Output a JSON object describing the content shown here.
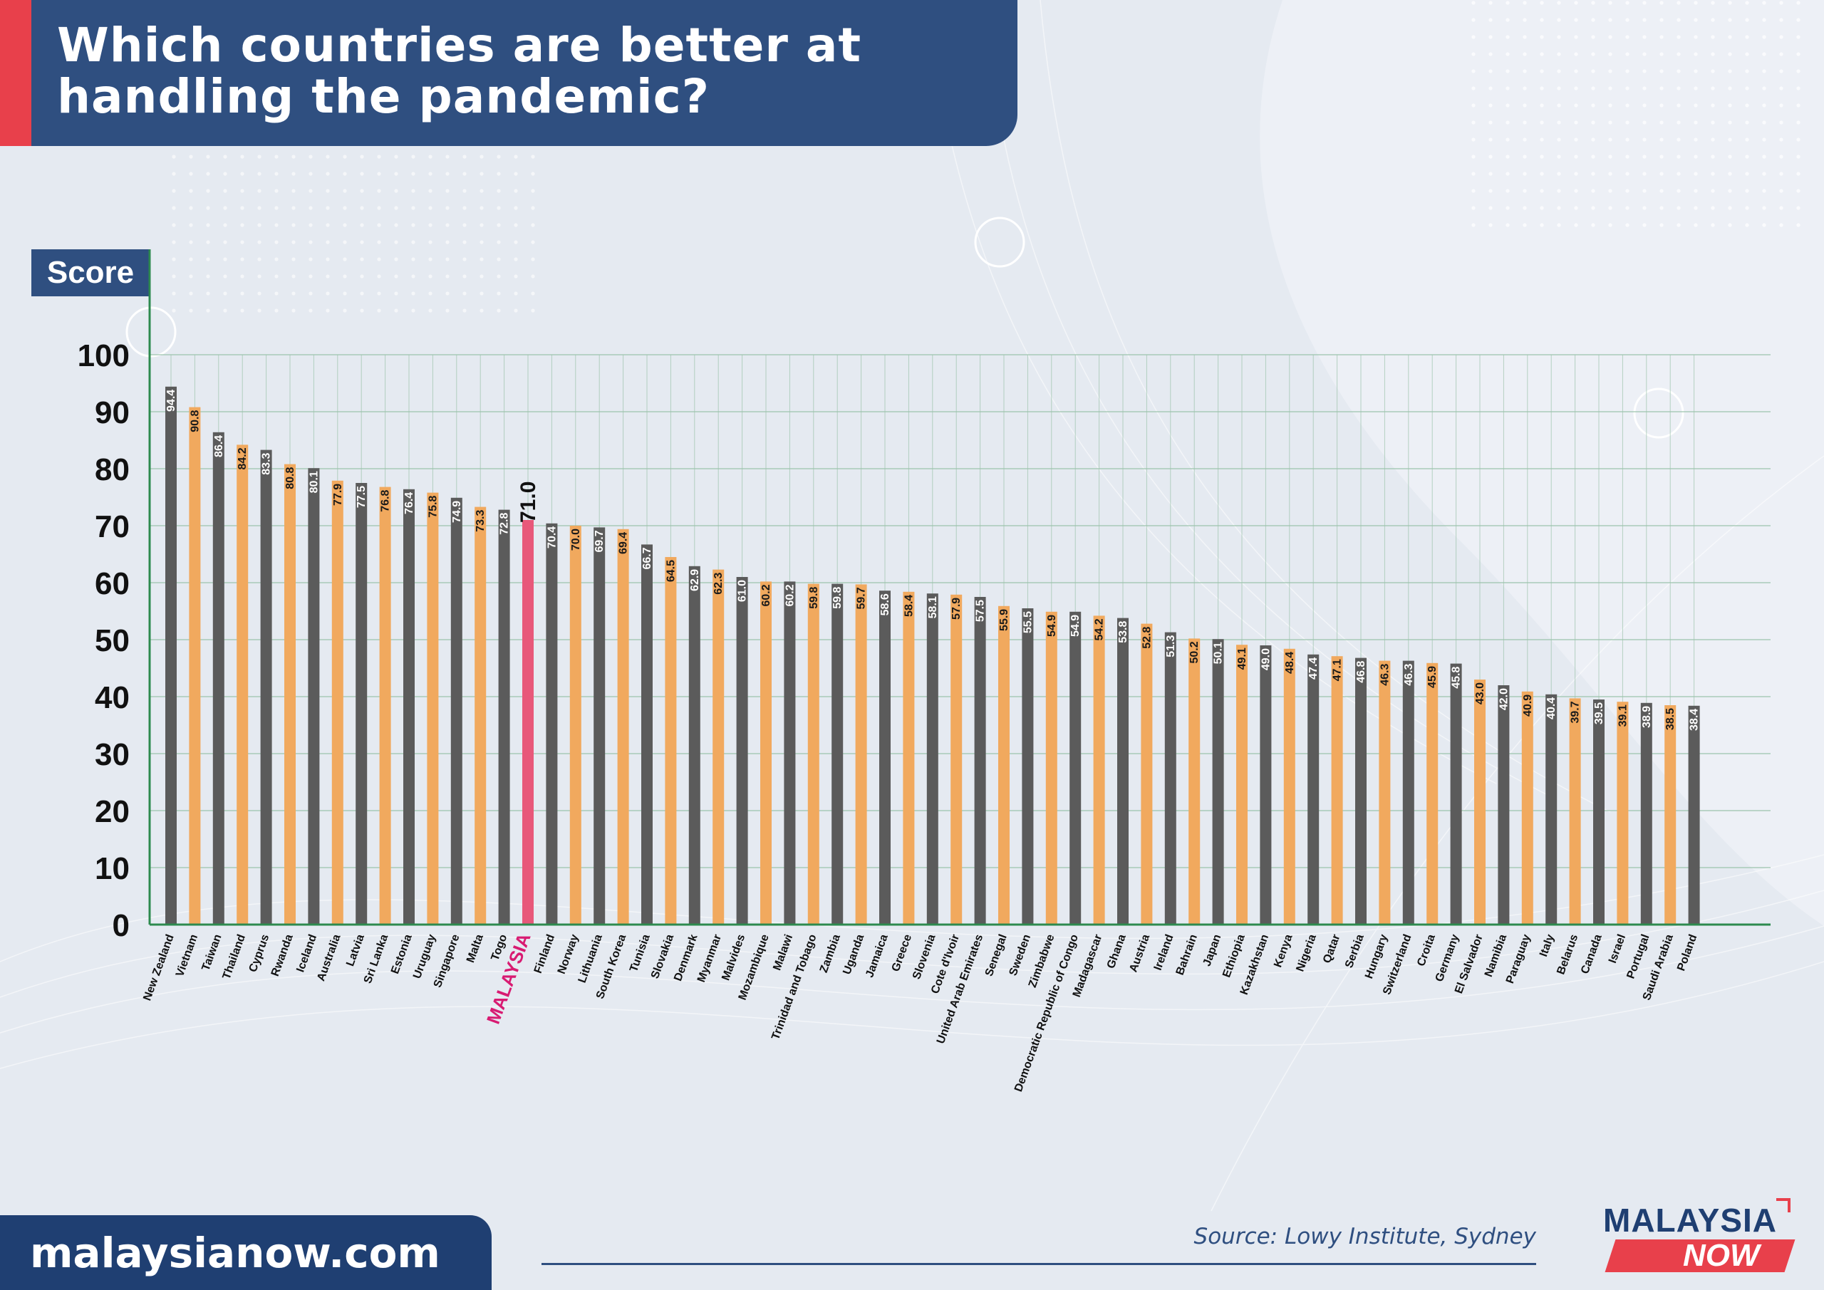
{
  "header": {
    "title_line1": "Which countries are better at",
    "title_line2": "handling the pandemic?"
  },
  "score_label": "Score",
  "colors": {
    "grey": "#5b5b5b",
    "orange": "#f1a95e",
    "highlight": "#e8587a",
    "highlight_label": "#d81b72",
    "title_bg": "#2f4f80",
    "accent": "#e8404b",
    "axis": "#2d8a4e",
    "grid": "#9cc3ac"
  },
  "chart_data": {
    "type": "bar",
    "title": "Which countries are better at handling the pandemic?",
    "ylabel": "Score",
    "ylim": [
      0,
      100
    ],
    "yticks": [
      0,
      10,
      20,
      30,
      40,
      50,
      60,
      70,
      80,
      90,
      100
    ],
    "grid": true,
    "highlight": "MALAYSIA",
    "categories": [
      "New Zealand",
      "Vietnam",
      "Taiwan",
      "Thailand",
      "Cyprus",
      "Rwanda",
      "Iceland",
      "Australia",
      "Latvia",
      "Sri Lanka",
      "Estonia",
      "Uruguay",
      "Singapore",
      "Malta",
      "Togo",
      "MALAYSIA",
      "Finland",
      "Norway",
      "Lithuania",
      "South Korea",
      "Tunisia",
      "Slovakia",
      "Denmark",
      "Myanmar",
      "Malvides",
      "Mozambique",
      "Malawi",
      "Trinidad and Tobago",
      "Zambia",
      "Uganda",
      "Jamaica",
      "Greece",
      "Slovenia",
      "Cote d'Ivoir",
      "United Arab Emirates",
      "Senegal",
      "Sweden",
      "Zimbabwe",
      "Democratic Republic of Congo",
      "Madagascar",
      "Ghana",
      "Austria",
      "Ireland",
      "Bahrain",
      "Japan",
      "Ethiopia",
      "Kazakhstan",
      "Kenya",
      "Nigeria",
      "Qatar",
      "Serbia",
      "Hungary",
      "Switzerland",
      "Croita",
      "Germany",
      "El Salvador",
      "Namibia",
      "Paraguay",
      "Italy",
      "Belarus",
      "Canada",
      "Israel",
      "Portugal",
      "Saudi Arabia",
      "Poland"
    ],
    "values": [
      94.4,
      90.8,
      86.4,
      84.2,
      83.3,
      80.8,
      80.1,
      77.9,
      77.5,
      76.8,
      76.4,
      75.8,
      74.9,
      73.3,
      72.8,
      71.0,
      70.4,
      70.0,
      69.7,
      69.4,
      66.7,
      64.5,
      62.9,
      62.3,
      61.0,
      60.2,
      60.2,
      59.8,
      59.8,
      59.7,
      58.6,
      58.4,
      58.1,
      57.9,
      57.5,
      55.9,
      55.5,
      54.9,
      54.9,
      54.2,
      53.8,
      52.8,
      51.3,
      50.2,
      50.1,
      49.1,
      49.0,
      48.4,
      47.4,
      47.1,
      46.8,
      46.3,
      46.3,
      45.9,
      45.8,
      43.0,
      42.0,
      40.9,
      40.4,
      39.7,
      39.5,
      39.1,
      38.9,
      38.5,
      38.4
    ],
    "value_labels": [
      "94.4",
      "90.8",
      "86.4",
      "84.2",
      "83.3",
      "80.8",
      "80.1",
      "77.9",
      "77.5",
      "76.8",
      "76.4",
      "75.8",
      "74.9",
      "73.3",
      "72.8",
      "71.0",
      "70.4",
      "70.0",
      "69.7",
      "69.4",
      "66.7",
      "64.5",
      "62.9",
      "62.3",
      "61.0",
      "60.2",
      "60.2",
      "59.8",
      "59.8",
      "59.7",
      "58.6",
      "58.4",
      "58.1",
      "57.9",
      "57.5",
      "55.9",
      "55.5",
      "54.9",
      "54.9",
      "54.2",
      "53.8",
      "52.8",
      "51.3",
      "50.2",
      "50.1",
      "49.1",
      "49.0",
      "48.4",
      "47.4",
      "47.1",
      "46.8",
      "46.3",
      "46.3",
      "45.9",
      "45.8",
      "43.0",
      "42.0",
      "40.9",
      "40.4",
      "39.7",
      "39.5",
      "39.1",
      "38.9",
      "38.5",
      "38.4"
    ]
  },
  "footer": {
    "website": "malaysianow.com",
    "source": "Source: Lowy Institute, Sydney",
    "logo_top": "MALAYSIA",
    "logo_bottom": "NOW"
  }
}
